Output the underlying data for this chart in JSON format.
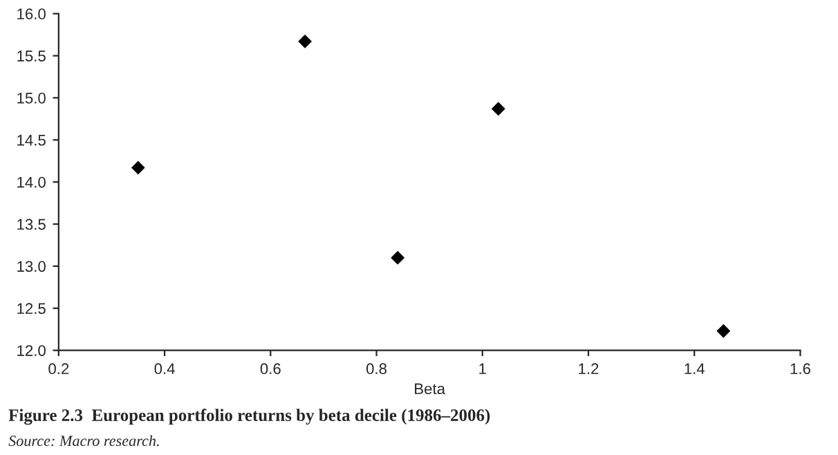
{
  "chart_data": {
    "type": "scatter",
    "title": "Figure 2.3  European portfolio returns by beta decile (1986–2006)",
    "xlabel": "Beta",
    "annotations": [
      "Source: Macro research."
    ],
    "x": [
      0.35,
      0.665,
      0.84,
      1.03,
      1.455
    ],
    "series": [
      {
        "color": "#000000",
        "values": [
          14.17,
          15.67,
          13.1,
          14.87,
          12.23
        ]
      }
    ],
    "marker": "diamond",
    "grid": false,
    "legend": false,
    "xlim": [
      0.2,
      1.6
    ],
    "xticks": [
      0.2,
      0.4,
      0.6,
      0.8,
      1,
      1.2,
      1.4,
      1.6
    ],
    "ylim": [
      12.0,
      16.0
    ],
    "yticks": [
      {
        "value": 12,
        "label": "12.0"
      },
      12.5,
      {
        "value": 13,
        "label": "13.0"
      },
      13.5,
      {
        "value": 14,
        "label": "14.0"
      },
      14.5,
      {
        "value": 15,
        "label": "15.0"
      },
      15.5,
      {
        "value": 16,
        "label": "16.0"
      }
    ]
  }
}
